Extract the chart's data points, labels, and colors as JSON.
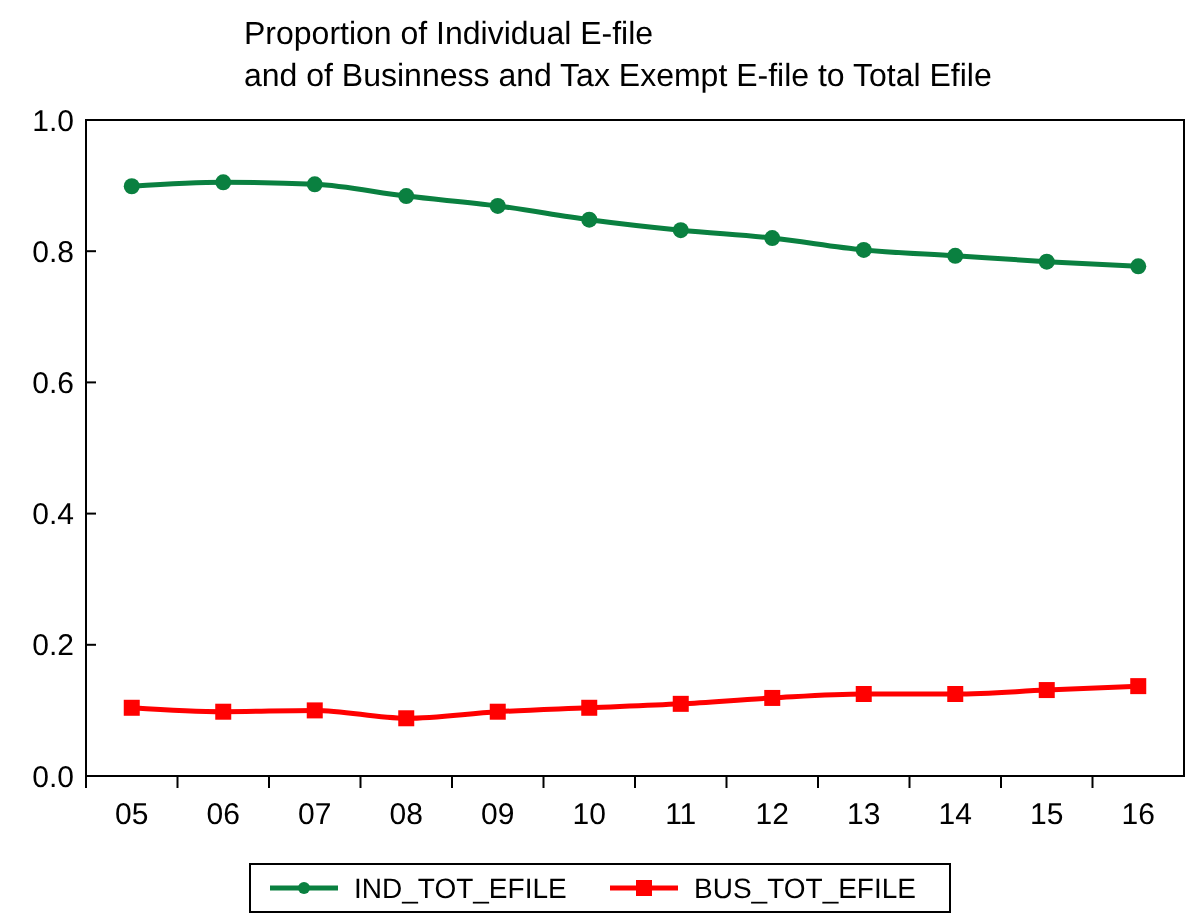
{
  "chart_data": {
    "type": "line",
    "title": "Proportion of Individual E-file\nand of Businness and Tax Exempt E-file to Total Efile",
    "categories": [
      "05",
      "06",
      "07",
      "08",
      "09",
      "10",
      "11",
      "12",
      "13",
      "14",
      "15",
      "16"
    ],
    "series": [
      {
        "name": "IND_TOT_EFILE",
        "color": "#0a8040",
        "marker": "circle",
        "values": [
          0.899,
          0.905,
          0.902,
          0.884,
          0.869,
          0.848,
          0.832,
          0.82,
          0.802,
          0.793,
          0.784,
          0.777
        ]
      },
      {
        "name": "BUS_TOT_EFILE",
        "color": "#ff0000",
        "marker": "square",
        "values": [
          0.104,
          0.098,
          0.1,
          0.088,
          0.098,
          0.104,
          0.11,
          0.119,
          0.125,
          0.125,
          0.131,
          0.137
        ]
      }
    ],
    "ylim": [
      0,
      1
    ],
    "yticks": [
      {
        "value": 0,
        "label": "0.0"
      },
      {
        "value": 0.2,
        "label": "0.2"
      },
      {
        "value": 0.4,
        "label": "0.4"
      },
      {
        "value": 0.6,
        "label": "0.6"
      },
      {
        "value": 0.8,
        "label": "0.8"
      },
      {
        "value": 1,
        "label": "1.0"
      }
    ],
    "grid": false,
    "legend": "bottom"
  }
}
